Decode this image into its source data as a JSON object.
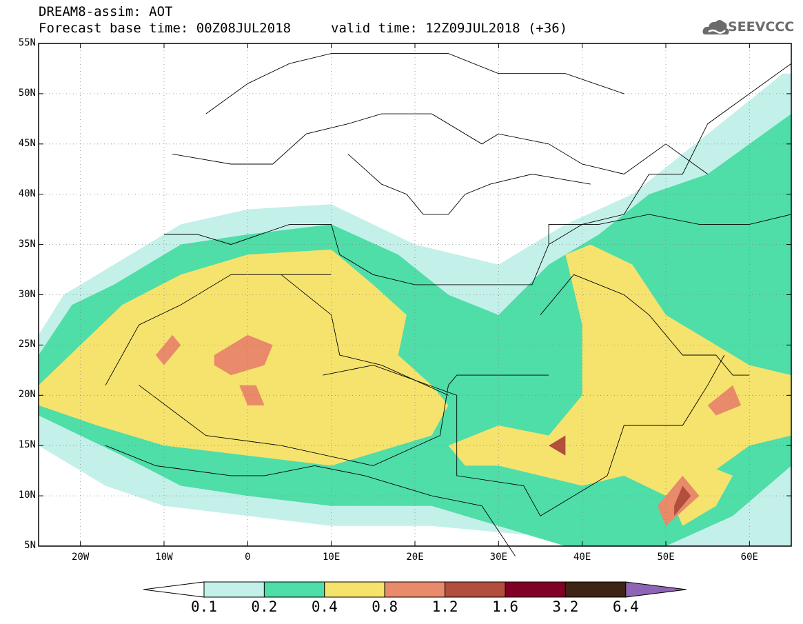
{
  "header": {
    "line1": "DREAM8-assim: AOT",
    "line2": "Forecast base time: 00Z08JUL2018",
    "line3": "valid time: 12Z09JUL2018 (+36)",
    "logo_text": "SEEVCCC"
  },
  "map": {
    "lon_range": [
      -25,
      65
    ],
    "lat_range": [
      5,
      55
    ],
    "lat_ticks": [
      {
        "value": 55,
        "label": "55N"
      },
      {
        "value": 50,
        "label": "50N"
      },
      {
        "value": 45,
        "label": "45N"
      },
      {
        "value": 40,
        "label": "40N"
      },
      {
        "value": 35,
        "label": "35N"
      },
      {
        "value": 30,
        "label": "30N"
      },
      {
        "value": 25,
        "label": "25N"
      },
      {
        "value": 20,
        "label": "20N"
      },
      {
        "value": 15,
        "label": "15N"
      },
      {
        "value": 10,
        "label": "10N"
      },
      {
        "value": 5,
        "label": "5N"
      }
    ],
    "lon_ticks": [
      {
        "value": -20,
        "label": "20W"
      },
      {
        "value": -10,
        "label": "10W"
      },
      {
        "value": 0,
        "label": "0"
      },
      {
        "value": 10,
        "label": "10E"
      },
      {
        "value": 20,
        "label": "20E"
      },
      {
        "value": 30,
        "label": "30E"
      },
      {
        "value": 40,
        "label": "40E"
      },
      {
        "value": 50,
        "label": "50E"
      },
      {
        "value": 60,
        "label": "60E"
      }
    ],
    "grid": true,
    "regions": [
      {
        "level": 0,
        "color": "#c4f0ea",
        "poly": [
          [
            -25,
            26
          ],
          [
            -22,
            30
          ],
          [
            -16,
            33
          ],
          [
            -8,
            37
          ],
          [
            0,
            38.5
          ],
          [
            10,
            39
          ],
          [
            20,
            35
          ],
          [
            30,
            33
          ],
          [
            38,
            37
          ],
          [
            46,
            40
          ],
          [
            52,
            44
          ],
          [
            58,
            48
          ],
          [
            64,
            52
          ],
          [
            65,
            52
          ],
          [
            65,
            5
          ],
          [
            45,
            5
          ],
          [
            35,
            6
          ],
          [
            22,
            7
          ],
          [
            10,
            7
          ],
          [
            0,
            8
          ],
          [
            -10,
            9
          ],
          [
            -17,
            11
          ],
          [
            -25,
            15
          ]
        ]
      },
      {
        "level": 1,
        "color": "#4fdda8",
        "poly": [
          [
            -25,
            24
          ],
          [
            -21,
            29
          ],
          [
            -16,
            31
          ],
          [
            -8,
            35
          ],
          [
            0,
            36
          ],
          [
            10,
            37
          ],
          [
            18,
            34
          ],
          [
            24,
            30
          ],
          [
            30,
            28
          ],
          [
            36,
            33
          ],
          [
            42,
            36
          ],
          [
            48,
            40
          ],
          [
            55,
            42
          ],
          [
            60,
            45
          ],
          [
            65,
            48
          ],
          [
            65,
            13
          ],
          [
            58,
            8
          ],
          [
            50,
            5
          ],
          [
            38,
            5
          ],
          [
            30,
            7
          ],
          [
            22,
            9
          ],
          [
            10,
            9
          ],
          [
            0,
            10
          ],
          [
            -8,
            11
          ],
          [
            -15,
            14
          ],
          [
            -25,
            18
          ]
        ]
      },
      {
        "level": 2,
        "color": "#f5e36e",
        "poly": [
          [
            -25,
            21
          ],
          [
            -20,
            25
          ],
          [
            -15,
            29
          ],
          [
            -8,
            32
          ],
          [
            0,
            34
          ],
          [
            10,
            34.5
          ],
          [
            15,
            31
          ],
          [
            19,
            28
          ],
          [
            18,
            24
          ],
          [
            22,
            21
          ],
          [
            24,
            19
          ],
          [
            22,
            16
          ],
          [
            10,
            13
          ],
          [
            0,
            14
          ],
          [
            -10,
            15
          ],
          [
            -18,
            17
          ],
          [
            -25,
            19
          ]
        ]
      },
      {
        "level": 2,
        "color": "#f5e36e",
        "poly": [
          [
            24,
            15
          ],
          [
            30,
            17
          ],
          [
            36,
            16
          ],
          [
            40,
            20
          ],
          [
            40,
            27
          ],
          [
            38,
            34
          ],
          [
            41,
            35
          ],
          [
            46,
            33
          ],
          [
            50,
            28
          ],
          [
            56,
            25
          ],
          [
            60,
            23
          ],
          [
            65,
            22
          ],
          [
            65,
            16
          ],
          [
            60,
            15
          ],
          [
            55,
            12
          ],
          [
            50,
            10
          ],
          [
            45,
            12
          ],
          [
            40,
            11
          ],
          [
            35,
            12
          ],
          [
            30,
            13
          ],
          [
            26,
            13
          ]
        ]
      },
      {
        "level": 2,
        "color": "#f5e36e",
        "poly": [
          [
            52,
            7
          ],
          [
            56,
            9
          ],
          [
            58,
            12
          ],
          [
            55,
            13
          ],
          [
            50,
            11
          ]
        ]
      },
      {
        "level": 3,
        "color": "#e98a6a",
        "poly": [
          [
            -4,
            24
          ],
          [
            0,
            26
          ],
          [
            3,
            25
          ],
          [
            2,
            23
          ],
          [
            -2,
            22
          ],
          [
            -4,
            23
          ]
        ]
      },
      {
        "level": 3,
        "color": "#e98a6a",
        "poly": [
          [
            -11,
            24
          ],
          [
            -9,
            26
          ],
          [
            -8,
            25
          ],
          [
            -10,
            23
          ]
        ]
      },
      {
        "level": 3,
        "color": "#e98a6a",
        "poly": [
          [
            -1,
            21
          ],
          [
            1,
            21
          ],
          [
            2,
            19
          ],
          [
            0,
            19
          ]
        ]
      },
      {
        "level": 3,
        "color": "#e98a6a",
        "poly": [
          [
            55,
            19
          ],
          [
            58,
            21
          ],
          [
            59,
            19
          ],
          [
            56,
            18
          ]
        ]
      },
      {
        "level": 3,
        "color": "#e98a6a",
        "poly": [
          [
            49,
            9
          ],
          [
            52,
            12
          ],
          [
            54,
            10
          ],
          [
            50,
            7
          ]
        ]
      },
      {
        "level": 4,
        "color": "#b24e3c",
        "poly": [
          [
            51,
            9
          ],
          [
            52,
            11
          ],
          [
            53,
            10
          ],
          [
            51,
            8
          ]
        ]
      },
      {
        "level": 4,
        "color": "#b24e3c",
        "poly": [
          [
            36,
            15
          ],
          [
            38,
            16
          ],
          [
            38,
            14
          ]
        ]
      }
    ],
    "borders": [
      [
        [
          -10,
          36
        ],
        [
          -6,
          36
        ],
        [
          -2,
          35
        ],
        [
          5,
          37
        ],
        [
          10,
          37
        ],
        [
          11,
          34
        ],
        [
          15,
          32
        ],
        [
          20,
          31
        ],
        [
          25,
          31
        ],
        [
          30,
          31
        ],
        [
          32,
          31
        ],
        [
          34,
          31
        ],
        [
          36,
          35
        ],
        [
          36,
          37
        ],
        [
          42,
          37
        ],
        [
          48,
          38
        ],
        [
          54,
          37
        ],
        [
          60,
          37
        ],
        [
          65,
          38
        ]
      ],
      [
        [
          -17,
          21
        ],
        [
          -13,
          27
        ],
        [
          -8,
          29
        ],
        [
          -2,
          32
        ],
        [
          0,
          32
        ],
        [
          10,
          32
        ]
      ],
      [
        [
          -13,
          21
        ],
        [
          -5,
          16
        ],
        [
          4,
          15
        ],
        [
          15,
          13
        ],
        [
          23,
          16
        ],
        [
          24,
          21
        ],
        [
          25,
          22
        ],
        [
          36,
          22
        ]
      ],
      [
        [
          9,
          22
        ],
        [
          15,
          23
        ],
        [
          25,
          20
        ],
        [
          25,
          12
        ],
        [
          33,
          11
        ],
        [
          35,
          8
        ],
        [
          43,
          12
        ]
      ],
      [
        [
          35,
          28
        ],
        [
          39,
          32
        ],
        [
          45,
          30
        ],
        [
          48,
          28
        ],
        [
          52,
          24
        ],
        [
          56,
          24
        ],
        [
          58,
          22
        ],
        [
          60,
          22
        ]
      ],
      [
        [
          43,
          12
        ],
        [
          45,
          17
        ],
        [
          52,
          17
        ],
        [
          55,
          21
        ],
        [
          57,
          24
        ]
      ],
      [
        [
          -17,
          15
        ],
        [
          -11,
          13
        ],
        [
          -2,
          12
        ],
        [
          2,
          12
        ],
        [
          8,
          13
        ],
        [
          14,
          12
        ],
        [
          22,
          10
        ],
        [
          28,
          9
        ],
        [
          32,
          4
        ]
      ],
      [
        [
          4,
          32
        ],
        [
          10,
          28
        ],
        [
          11,
          24
        ],
        [
          16,
          23
        ],
        [
          24,
          20
        ]
      ],
      [
        [
          36,
          35
        ],
        [
          40,
          37
        ],
        [
          45,
          38
        ],
        [
          48,
          42
        ],
        [
          52,
          42
        ],
        [
          55,
          47
        ],
        [
          60,
          50
        ],
        [
          65,
          53
        ]
      ],
      [
        [
          -9,
          44
        ],
        [
          -2,
          43
        ],
        [
          3,
          43
        ],
        [
          7,
          46
        ],
        [
          12,
          47
        ],
        [
          16,
          48
        ],
        [
          22,
          48
        ],
        [
          28,
          45
        ],
        [
          30,
          46
        ],
        [
          36,
          45
        ],
        [
          40,
          43
        ],
        [
          45,
          42
        ],
        [
          50,
          45
        ],
        [
          55,
          42
        ]
      ],
      [
        [
          -5,
          48
        ],
        [
          0,
          51
        ],
        [
          5,
          53
        ],
        [
          10,
          54
        ],
        [
          18,
          54
        ],
        [
          24,
          54
        ],
        [
          30,
          52
        ],
        [
          38,
          52
        ],
        [
          45,
          50
        ]
      ],
      [
        [
          12,
          44
        ],
        [
          16,
          41
        ],
        [
          19,
          40
        ],
        [
          21,
          38
        ],
        [
          24,
          38
        ],
        [
          26,
          40
        ],
        [
          29,
          41
        ],
        [
          34,
          42
        ],
        [
          41,
          41
        ]
      ]
    ]
  },
  "colorbar": {
    "colors": [
      "#c4f0ea",
      "#4fdda8",
      "#f5e36e",
      "#e98a6a",
      "#b24e3c",
      "#800026",
      "#3d2414"
    ],
    "under_color": "#ffffff",
    "over_color": "#8e64b4",
    "labels": [
      "0.1",
      "0.2",
      "0.4",
      "0.8",
      "1.2",
      "1.6",
      "3.2",
      "6.4"
    ]
  }
}
